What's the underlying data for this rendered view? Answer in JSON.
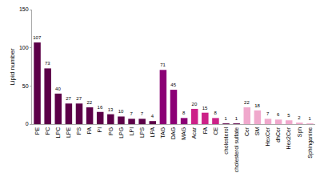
{
  "chart_data": {
    "type": "bar",
    "categories": [
      "PE",
      "PC",
      "LPC",
      "LPE",
      "PS",
      "PA",
      "PI",
      "PG",
      "LPG",
      "LPI",
      "LPS",
      "LPA",
      "TAG",
      "DAG",
      "MAG",
      "Acar",
      "FA",
      "CE",
      "cholesterol",
      "cholesterol sulfate",
      "Cer",
      "SM",
      "HexCer",
      "dhCer",
      "Hex2Cer",
      "Sph",
      "Sphinganine"
    ],
    "values": [
      107,
      73,
      40,
      27,
      27,
      22,
      16,
      13,
      10,
      7,
      7,
      4,
      71,
      45,
      8,
      20,
      15,
      8,
      1,
      1,
      22,
      18,
      7,
      6,
      5,
      2,
      1
    ],
    "colors": [
      "#5c0048",
      "#5c0048",
      "#5c0048",
      "#5c0048",
      "#5c0048",
      "#5c0048",
      "#5c0048",
      "#5c0048",
      "#5c0048",
      "#5c0048",
      "#5c0048",
      "#5c0048",
      "#8b0075",
      "#8b0075",
      "#8b0075",
      "#cc2288",
      "#cc2288",
      "#cc2288",
      "#5c0048",
      "#5c0048",
      "#f0a8cc",
      "#f0a8cc",
      "#f0a8cc",
      "#f0a8cc",
      "#f0a8cc",
      "#f0a8cc",
      "#f0a8cc"
    ],
    "ylabel": "Lipid number",
    "ylim": [
      0,
      150
    ],
    "yticks": [
      0,
      50,
      100,
      150
    ],
    "grid": false,
    "data_labels": true
  }
}
